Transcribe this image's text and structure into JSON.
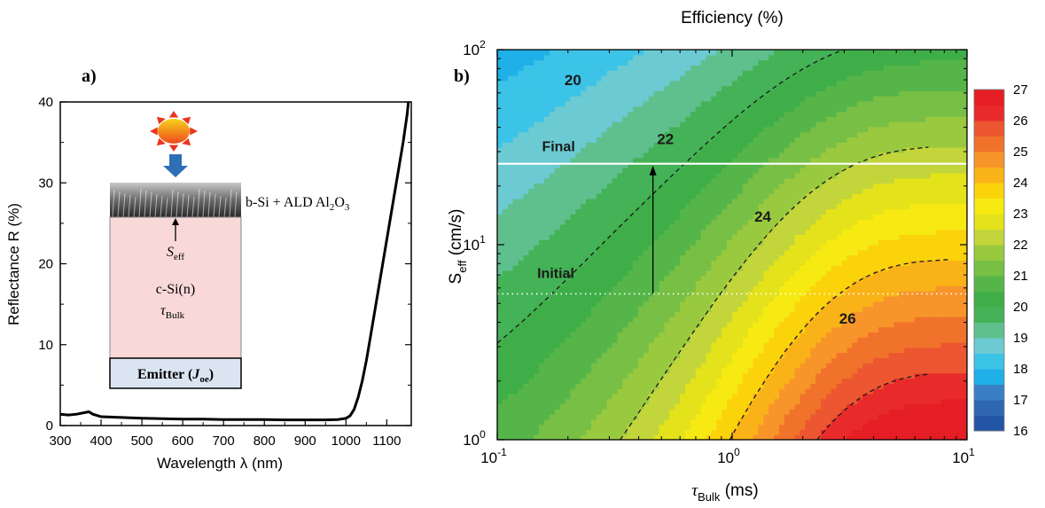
{
  "chart_data": [
    {
      "panel_label": "a)",
      "type": "line",
      "xlabel": "Wavelength λ (nm)",
      "ylabel": "Reflectance R (%)",
      "xlim": [
        300,
        1160
      ],
      "ylim": [
        0,
        40
      ],
      "xticks": [
        "300",
        "400",
        "500",
        "600",
        "700",
        "800",
        "900",
        "1000",
        "1100"
      ],
      "yticks": [
        "0",
        "10",
        "20",
        "30",
        "40"
      ],
      "grid": false,
      "series": [
        {
          "x": [
            300,
            320,
            340,
            360,
            370,
            380,
            400,
            450,
            500,
            550,
            600,
            650,
            700,
            750,
            800,
            850,
            900,
            950,
            980,
            1000,
            1010,
            1020,
            1030,
            1040,
            1050,
            1060,
            1070,
            1080,
            1090,
            1100,
            1110,
            1120,
            1130,
            1140,
            1150,
            1155
          ],
          "y": [
            1.4,
            1.3,
            1.4,
            1.6,
            1.7,
            1.4,
            1.1,
            1.0,
            0.9,
            0.85,
            0.8,
            0.8,
            0.75,
            0.75,
            0.75,
            0.7,
            0.7,
            0.7,
            0.75,
            0.9,
            1.2,
            2,
            3.5,
            5.5,
            8,
            11,
            14,
            17,
            20,
            23,
            26,
            29,
            32,
            35,
            38.5,
            41
          ]
        }
      ],
      "inset": {
        "layer_top": "b-Si + ALD Al",
        "layer_top_sub": "2",
        "layer_top_mid": "O",
        "layer_top_sub2": "3",
        "s_label": "S",
        "s_sub": "eff",
        "bulk_label": "c-Si(n)",
        "tau_label": "τ",
        "tau_sub": "Bulk",
        "emitter_label": "Emitter (",
        "emitter_j": "J",
        "emitter_sub": "oe",
        "emitter_close": ")"
      }
    },
    {
      "panel_label": "b)",
      "type": "heatmap",
      "title": "Efficiency (%)",
      "xlabel": "τ",
      "xlabel_sub": "Bulk",
      "xlabel_unit": " (ms)",
      "ylabel": "S",
      "ylabel_sub": "eff",
      "ylabel_unit": " (cm/s)",
      "xscale": "log",
      "yscale": "log",
      "xlim": [
        0.1,
        10
      ],
      "ylim": [
        1,
        100
      ],
      "xticks": [
        {
          "base": "10",
          "exp": "-1"
        },
        {
          "base": "10",
          "exp": "0"
        },
        {
          "base": "10",
          "exp": "1"
        }
      ],
      "yticks": [
        {
          "base": "10",
          "exp": "0"
        },
        {
          "base": "10",
          "exp": "1"
        },
        {
          "base": "10",
          "exp": "2"
        }
      ],
      "colorbar": {
        "min": 16,
        "max": 27,
        "tick_labels": [
          "16",
          "17",
          "18",
          "19",
          "20",
          "21",
          "22",
          "23",
          "24",
          "25",
          "26",
          "27"
        ],
        "colors": [
          "#2255a5",
          "#2e66b4",
          "#3a7fc6",
          "#1fb0e8",
          "#3cc3e8",
          "#6ccad2",
          "#5fc08e",
          "#44b257",
          "#3fae48",
          "#56b549",
          "#77bf45",
          "#99c93f",
          "#c2d53a",
          "#e4e21b",
          "#f6ea12",
          "#fbd30b",
          "#f9b319",
          "#f7952a",
          "#f1732b",
          "#ec5630",
          "#e92a2b",
          "#e41e24"
        ]
      },
      "contour_labels": [
        "20",
        "22",
        "24",
        "26"
      ],
      "contours": [
        {
          "level": "20",
          "x_asym": 0.15
        },
        {
          "level": "22",
          "x_asym": 0.29
        },
        {
          "level": "24",
          "x_asym": 0.68
        },
        {
          "level": "26",
          "x_asym": 2.4
        }
      ],
      "annotations": [
        {
          "text": "Final",
          "s_eff": 26
        },
        {
          "text": "Initial",
          "s_eff": 5.6
        }
      ],
      "arrow": {
        "x": 0.46,
        "from": 5.6,
        "to": 26
      }
    }
  ]
}
